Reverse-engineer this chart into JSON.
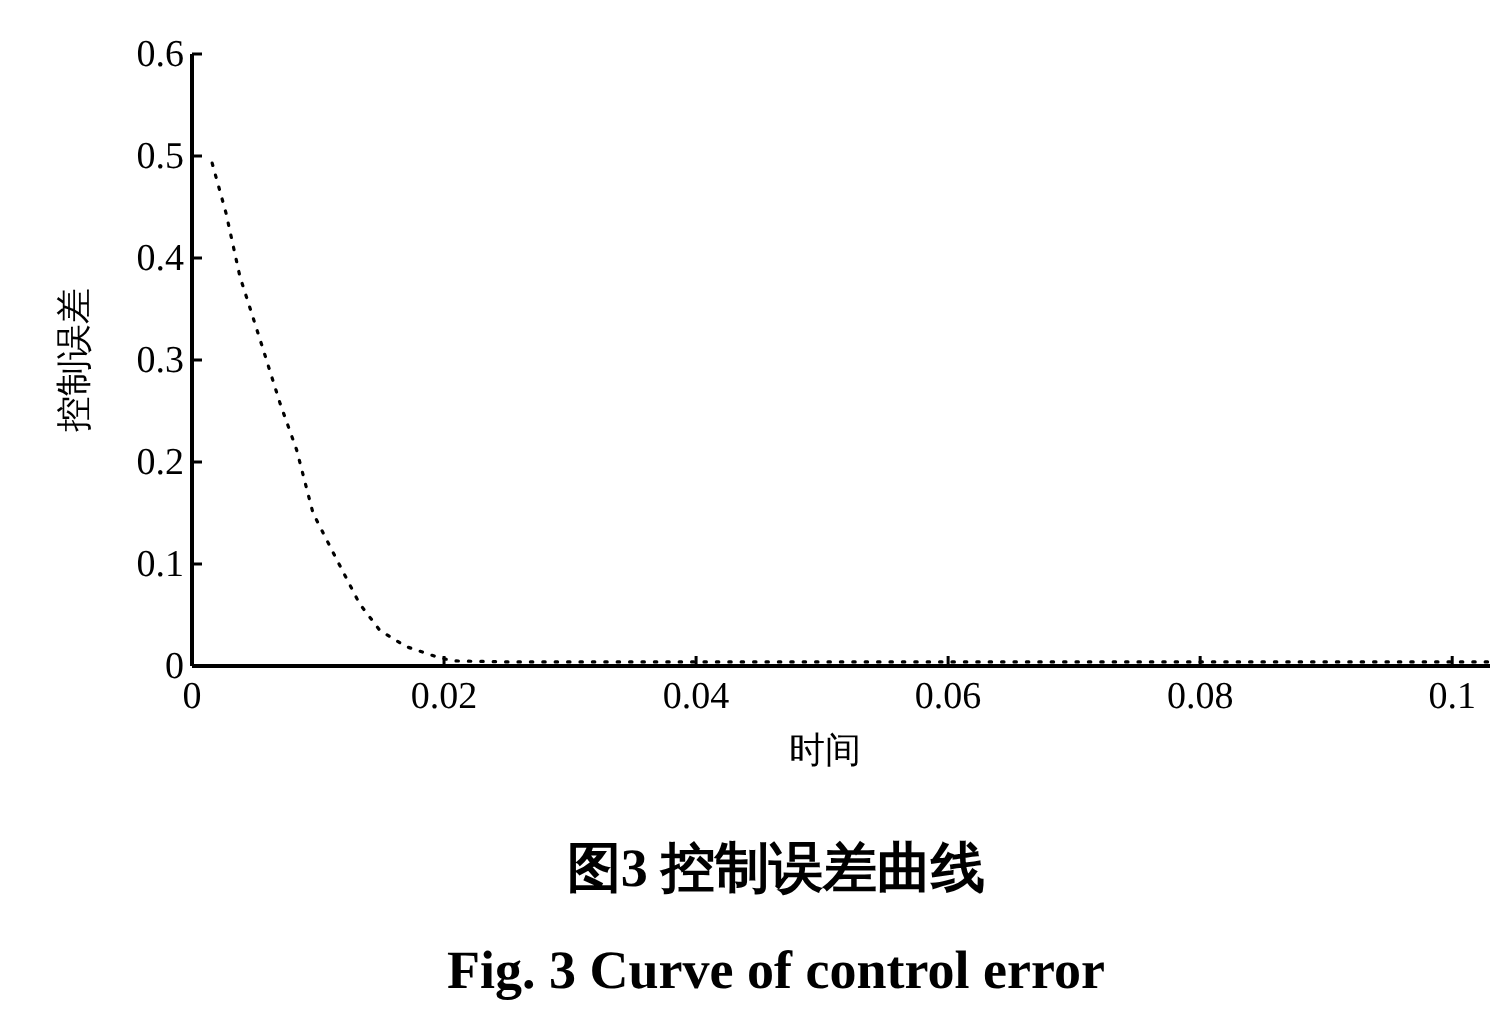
{
  "chart_data": {
    "type": "line",
    "title": "图3  控制误差曲线",
    "subtitle": "Fig. 3  Curve of control error",
    "xlabel": "时间",
    "ylabel": "控制误差",
    "series": [
      {
        "color": "#000000",
        "x": [
          0.0016,
          0.0027,
          0.0038,
          0.0054,
          0.007,
          0.0083,
          0.0096,
          0.0115,
          0.0133,
          0.0149,
          0.017,
          0.0194,
          0.0207,
          0.025,
          0.04,
          0.06,
          0.08,
          0.1,
          0.103
        ],
        "values": [
          0.493,
          0.444,
          0.382,
          0.32,
          0.257,
          0.212,
          0.15,
          0.104,
          0.061,
          0.035,
          0.019,
          0.009,
          0.005,
          0.004,
          0.004,
          0.004,
          0.004,
          0.004,
          0.004
        ]
      }
    ],
    "line_style": "dotted",
    "xlim": [
      0,
      0.103
    ],
    "ylim": [
      0,
      0.6
    ],
    "xticks": [
      0,
      0.02,
      0.04,
      0.06,
      0.08,
      0.1
    ],
    "yticks": [
      0,
      0.1,
      0.2,
      0.3,
      0.4,
      0.5,
      0.6
    ],
    "grid": false
  }
}
